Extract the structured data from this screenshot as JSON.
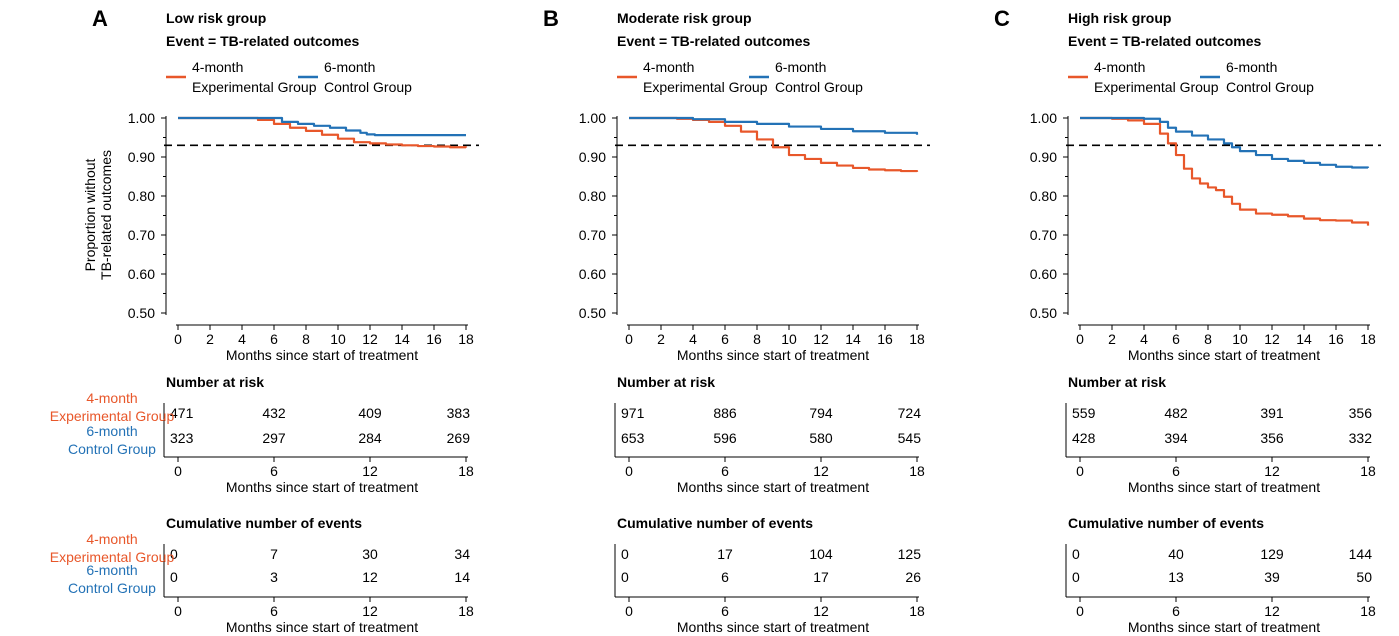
{
  "colors": {
    "experimental": "#E8572A",
    "control": "#2372B6",
    "axis": "#000000",
    "reference": "#000000"
  },
  "common": {
    "event_label": "Event = TB-related outcomes",
    "legend": [
      {
        "line1": "4-month",
        "line2": "Experimental Group",
        "color": "#E8572A"
      },
      {
        "line1": "6-month",
        "line2": "Control Group",
        "color": "#2372B6"
      }
    ],
    "y_label_line1": "Proportion without",
    "y_label_line2": "TB-related outcomes",
    "x_label": "Months since start of treatment",
    "risk_title": "Number at risk",
    "events_title": "Cumulative number of events",
    "row_labels": [
      {
        "line1": "4-month",
        "line2": "Experimental Group",
        "color": "#E8572A"
      },
      {
        "line1": "6-month",
        "line2": "Control Group",
        "color": "#2372B6"
      }
    ],
    "table_ticks": [
      0,
      6,
      12,
      18
    ]
  },
  "chart_data": [
    {
      "type": "line",
      "panel_letter": "A",
      "title": "Low risk group",
      "xlabel": "Months since start of treatment",
      "ylabel": "Proportion without TB-related outcomes",
      "xlim": [
        0,
        18
      ],
      "ylim": [
        0.5,
        1.0
      ],
      "x_ticks": [
        0,
        2,
        4,
        6,
        8,
        10,
        12,
        14,
        16,
        18
      ],
      "y_ticks": [
        "1.00",
        "0.90",
        "0.80",
        "0.70",
        "0.60",
        "0.50"
      ],
      "y_tick_values": [
        1.0,
        0.9,
        0.8,
        0.7,
        0.6,
        0.5
      ],
      "reference_line": 0.93,
      "grid": false,
      "legend_position": "top",
      "series": [
        {
          "name": "4-month Experimental Group",
          "color": "#E8572A",
          "x": [
            0,
            4,
            5,
            6,
            7,
            8,
            9,
            10,
            11,
            12,
            13,
            14,
            15,
            16,
            17,
            18
          ],
          "y": [
            1.0,
            1.0,
            0.995,
            0.985,
            0.975,
            0.967,
            0.957,
            0.947,
            0.938,
            0.935,
            0.932,
            0.93,
            0.928,
            0.927,
            0.925,
            0.924
          ]
        },
        {
          "name": "6-month Control Group",
          "color": "#2372B6",
          "x": [
            0,
            5.9,
            6.5,
            7.5,
            8.5,
            9.5,
            10.5,
            11.4,
            11.8,
            12.3,
            18
          ],
          "y": [
            1.0,
            1.0,
            0.99,
            0.985,
            0.98,
            0.975,
            0.968,
            0.962,
            0.958,
            0.956,
            0.956
          ]
        }
      ],
      "number_at_risk": {
        "experimental": [
          471,
          432,
          409,
          383
        ],
        "control": [
          323,
          297,
          284,
          269
        ]
      },
      "cumulative_events": {
        "experimental": [
          0,
          7,
          30,
          34
        ],
        "control": [
          0,
          3,
          12,
          14
        ]
      }
    },
    {
      "type": "line",
      "panel_letter": "B",
      "title": "Moderate risk group",
      "xlabel": "Months since start of treatment",
      "ylabel": "",
      "xlim": [
        0,
        18
      ],
      "ylim": [
        0.5,
        1.0
      ],
      "x_ticks": [
        0,
        2,
        4,
        6,
        8,
        10,
        12,
        14,
        16,
        18
      ],
      "y_ticks": [
        "1.00",
        "0.90",
        "0.80",
        "0.70",
        "0.60",
        "0.50"
      ],
      "y_tick_values": [
        1.0,
        0.9,
        0.8,
        0.7,
        0.6,
        0.5
      ],
      "reference_line": 0.93,
      "grid": false,
      "legend_position": "top",
      "series": [
        {
          "name": "4-month Experimental Group",
          "color": "#E8572A",
          "x": [
            0,
            3,
            4,
            5,
            6,
            7,
            8,
            9,
            10,
            11,
            12,
            13,
            14,
            15,
            16,
            17,
            18
          ],
          "y": [
            1.0,
            0.998,
            0.995,
            0.99,
            0.98,
            0.965,
            0.945,
            0.925,
            0.905,
            0.895,
            0.885,
            0.878,
            0.872,
            0.868,
            0.866,
            0.864,
            0.862
          ]
        },
        {
          "name": "6-month Control Group",
          "color": "#2372B6",
          "x": [
            0,
            4,
            6,
            8,
            10,
            12,
            14,
            16,
            18
          ],
          "y": [
            1.0,
            0.997,
            0.99,
            0.985,
            0.978,
            0.972,
            0.966,
            0.962,
            0.957
          ]
        }
      ],
      "number_at_risk": {
        "experimental": [
          971,
          886,
          794,
          724
        ],
        "control": [
          653,
          596,
          580,
          545
        ]
      },
      "cumulative_events": {
        "experimental": [
          0,
          17,
          104,
          125
        ],
        "control": [
          0,
          6,
          17,
          26
        ]
      }
    },
    {
      "type": "line",
      "panel_letter": "C",
      "title": "High risk group",
      "xlabel": "Months since start of treatment",
      "ylabel": "",
      "xlim": [
        0,
        18
      ],
      "ylim": [
        0.5,
        1.0
      ],
      "x_ticks": [
        0,
        2,
        4,
        6,
        8,
        10,
        12,
        14,
        16,
        18
      ],
      "y_ticks": [
        "1.00",
        "0.90",
        "0.80",
        "0.70",
        "0.60",
        "0.50"
      ],
      "y_tick_values": [
        1.0,
        0.9,
        0.8,
        0.7,
        0.6,
        0.5
      ],
      "reference_line": 0.93,
      "grid": false,
      "legend_position": "top",
      "series": [
        {
          "name": "4-month Experimental Group",
          "color": "#E8572A",
          "x": [
            0,
            2,
            3,
            4,
            5,
            5.5,
            6,
            6.5,
            7,
            7.5,
            8,
            8.5,
            9,
            9.5,
            10,
            11,
            12,
            13,
            14,
            15,
            16,
            17,
            18
          ],
          "y": [
            1.0,
            0.998,
            0.994,
            0.985,
            0.96,
            0.935,
            0.905,
            0.87,
            0.845,
            0.832,
            0.822,
            0.815,
            0.798,
            0.78,
            0.765,
            0.755,
            0.752,
            0.748,
            0.742,
            0.738,
            0.737,
            0.732,
            0.724
          ]
        },
        {
          "name": "6-month Control Group",
          "color": "#2372B6",
          "x": [
            0,
            4,
            5,
            5.5,
            6,
            7,
            8,
            9,
            9.5,
            10,
            11,
            12,
            13,
            14,
            15,
            16,
            17,
            18
          ],
          "y": [
            1.0,
            0.998,
            0.99,
            0.975,
            0.965,
            0.955,
            0.945,
            0.935,
            0.925,
            0.915,
            0.905,
            0.895,
            0.89,
            0.885,
            0.88,
            0.875,
            0.873,
            0.872
          ]
        }
      ],
      "number_at_risk": {
        "experimental": [
          559,
          482,
          391,
          356
        ],
        "control": [
          428,
          394,
          356,
          332
        ]
      },
      "cumulative_events": {
        "experimental": [
          0,
          40,
          129,
          144
        ],
        "control": [
          0,
          13,
          39,
          50
        ]
      }
    }
  ]
}
